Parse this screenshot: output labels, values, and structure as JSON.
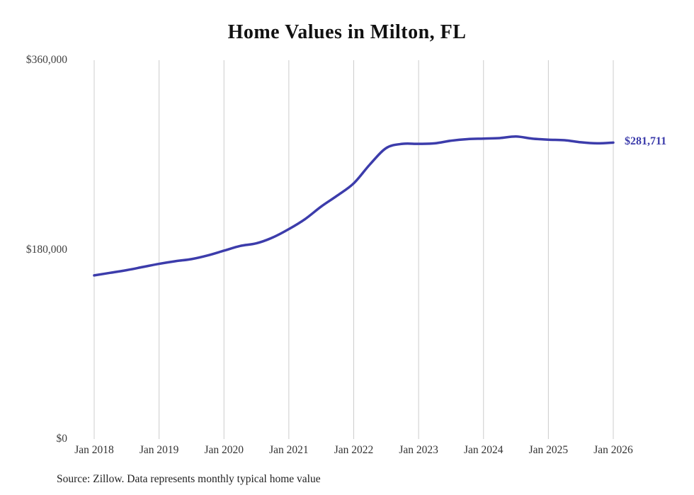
{
  "chart_data": {
    "type": "line",
    "title": "Home Values in Milton, FL",
    "xlabel": "",
    "ylabel": "",
    "xlim_months": [
      0,
      96
    ],
    "ylim": [
      0,
      360000
    ],
    "grid": {
      "vertical": true,
      "horizontal": false,
      "color": "#cccccc"
    },
    "legend_position": "none",
    "yticks": [
      {
        "value": 0,
        "label": "$0"
      },
      {
        "value": 180000,
        "label": "$180,000"
      },
      {
        "value": 360000,
        "label": "$360,000"
      }
    ],
    "xticks": [
      {
        "pos": 0,
        "label": "Jan 2018"
      },
      {
        "pos": 12,
        "label": "Jan 2019"
      },
      {
        "pos": 24,
        "label": "Jan 2020"
      },
      {
        "pos": 36,
        "label": "Jan 2021"
      },
      {
        "pos": 48,
        "label": "Jan 2022"
      },
      {
        "pos": 60,
        "label": "Jan 2023"
      },
      {
        "pos": 72,
        "label": "Jan 2024"
      },
      {
        "pos": 84,
        "label": "Jan 2025"
      },
      {
        "pos": 96,
        "label": "Jan 2026"
      }
    ],
    "series": [
      {
        "name": "Monthly typical home value",
        "color": "#3c3cab",
        "points": [
          [
            0,
            155500
          ],
          [
            3,
            158000
          ],
          [
            6,
            160500
          ],
          [
            9,
            163500
          ],
          [
            12,
            166500
          ],
          [
            15,
            169000
          ],
          [
            18,
            171000
          ],
          [
            21,
            174500
          ],
          [
            24,
            179000
          ],
          [
            27,
            183500
          ],
          [
            30,
            186000
          ],
          [
            33,
            191500
          ],
          [
            36,
            199500
          ],
          [
            39,
            209000
          ],
          [
            42,
            221000
          ],
          [
            45,
            231500
          ],
          [
            48,
            243000
          ],
          [
            51,
            261000
          ],
          [
            54,
            276500
          ],
          [
            57,
            280500
          ],
          [
            60,
            280500
          ],
          [
            63,
            281000
          ],
          [
            66,
            283500
          ],
          [
            69,
            285000
          ],
          [
            72,
            285500
          ],
          [
            75,
            286000
          ],
          [
            78,
            287500
          ],
          [
            81,
            285500
          ],
          [
            84,
            284500
          ],
          [
            87,
            284000
          ],
          [
            90,
            282000
          ],
          [
            93,
            281000
          ],
          [
            96,
            281711
          ]
        ]
      }
    ],
    "end_label": {
      "text": "$281,711",
      "value": 281711,
      "color": "#3c3cab"
    },
    "source_note": "Source: Zillow. Data represents monthly typical home value"
  }
}
